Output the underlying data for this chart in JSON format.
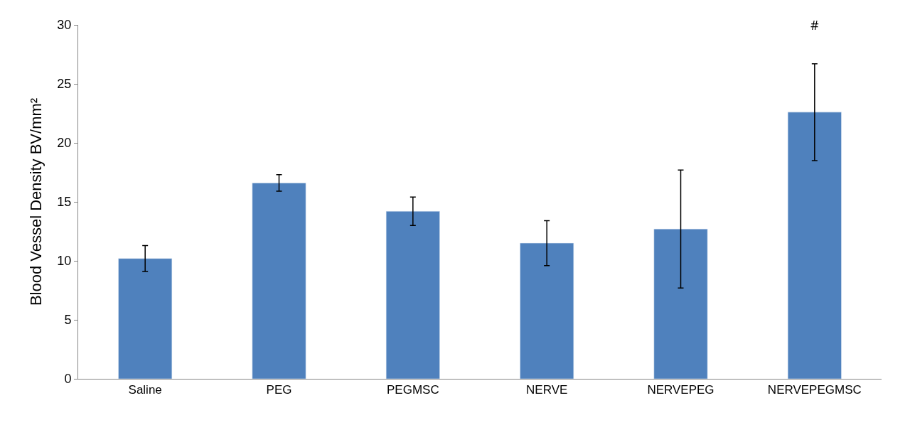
{
  "chart_data": {
    "type": "bar",
    "ylabel": "Blood Vessel Density BV/mm²",
    "categories": [
      "Saline",
      "PEG",
      "PEGMSC",
      "NERVE",
      "NERVEPEG",
      "NERVEPEGMSC"
    ],
    "values": [
      10.2,
      16.6,
      14.2,
      11.5,
      12.7,
      22.6
    ],
    "errors": [
      1.1,
      0.7,
      1.2,
      1.9,
      5.0,
      4.1
    ],
    "color": "#4f81bd",
    "ylim": [
      0,
      30
    ],
    "yticks": [
      0,
      5,
      10,
      15,
      20,
      25,
      30
    ],
    "annotations": [
      "#"
    ]
  }
}
